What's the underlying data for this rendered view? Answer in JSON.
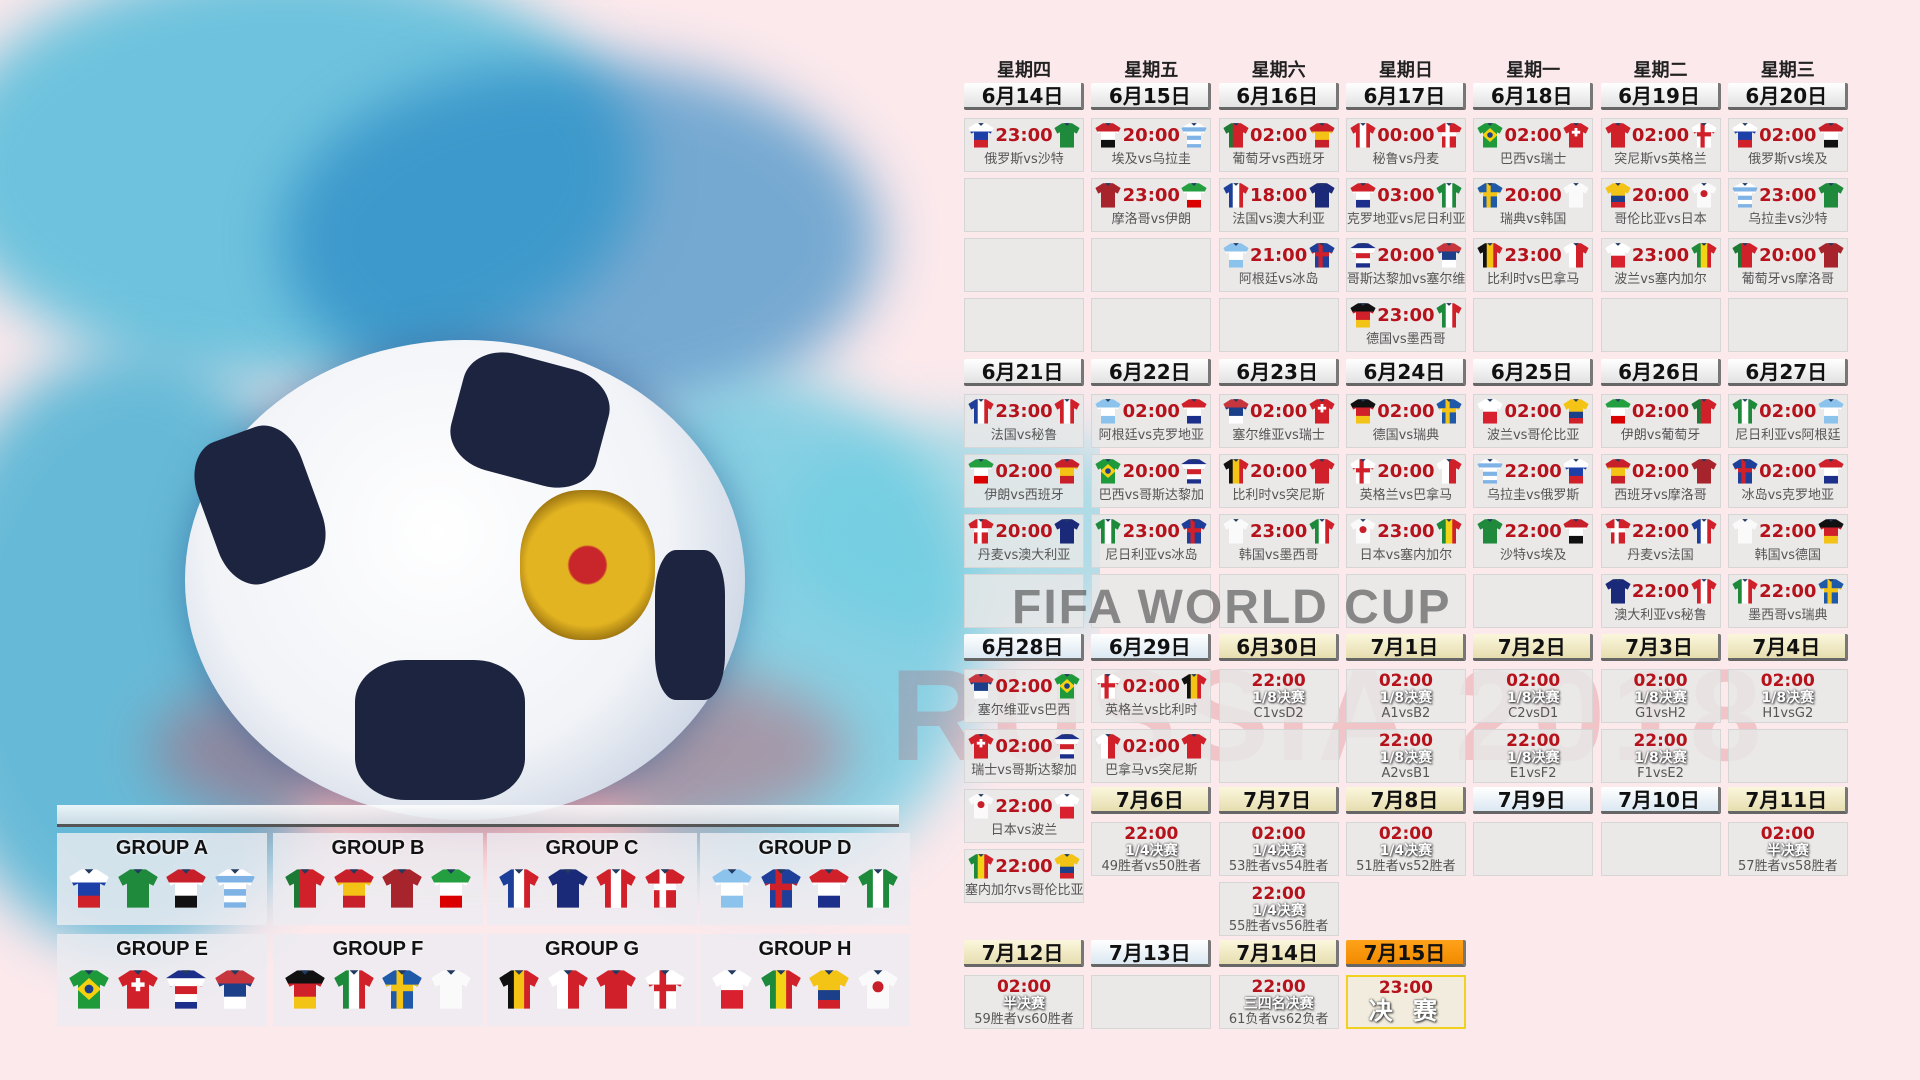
{
  "weekdays": [
    "星期四",
    "星期五",
    "星期六",
    "星期日",
    "星期一",
    "星期二",
    "星期三"
  ],
  "watermark": {
    "line1": "FIFA WORLD CUP",
    "line2": "RUSSIA 2018"
  },
  "days": [
    {
      "date": "6月14日",
      "style": "group",
      "matches": [
        {
          "time": "23:00",
          "home": "russia",
          "away": "saudi",
          "teams": "俄罗斯vs沙特"
        }
      ]
    },
    {
      "date": "6月15日",
      "style": "group",
      "matches": [
        {
          "time": "20:00",
          "home": "egypt",
          "away": "uruguay",
          "teams": "埃及vs乌拉圭"
        },
        {
          "time": "23:00",
          "home": "morocco",
          "away": "iran",
          "teams": "摩洛哥vs伊朗"
        }
      ]
    },
    {
      "date": "6月16日",
      "style": "group",
      "matches": [
        {
          "time": "02:00",
          "home": "portugal",
          "away": "spain",
          "teams": "葡萄牙vs西班牙"
        },
        {
          "time": "18:00",
          "home": "france",
          "away": "australia",
          "teams": "法国vs澳大利亚"
        },
        {
          "time": "21:00",
          "home": "argentina",
          "away": "iceland",
          "teams": "阿根廷vs冰岛"
        }
      ]
    },
    {
      "date": "6月17日",
      "style": "group",
      "matches": [
        {
          "time": "00:00",
          "home": "peru",
          "away": "denmark",
          "teams": "秘鲁vs丹麦"
        },
        {
          "time": "03:00",
          "home": "croatia",
          "away": "nigeria",
          "teams": "克罗地亚vs尼日利亚"
        },
        {
          "time": "20:00",
          "home": "costarica",
          "away": "serbia",
          "teams": "哥斯达黎加vs塞尔维亚"
        },
        {
          "time": "23:00",
          "home": "germany",
          "away": "mexico",
          "teams": "德国vs墨西哥"
        }
      ]
    },
    {
      "date": "6月18日",
      "style": "group",
      "matches": [
        {
          "time": "02:00",
          "home": "brazil",
          "away": "switzerland",
          "teams": "巴西vs瑞士"
        },
        {
          "time": "20:00",
          "home": "sweden",
          "away": "korea",
          "teams": "瑞典vs韩国"
        },
        {
          "time": "23:00",
          "home": "belgium",
          "away": "panama",
          "teams": "比利时vs巴拿马"
        }
      ]
    },
    {
      "date": "6月19日",
      "style": "group",
      "matches": [
        {
          "time": "02:00",
          "home": "tunisia",
          "away": "england",
          "teams": "突尼斯vs英格兰"
        },
        {
          "time": "20:00",
          "home": "colombia",
          "away": "japan",
          "teams": "哥伦比亚vs日本"
        },
        {
          "time": "23:00",
          "home": "poland",
          "away": "senegal",
          "teams": "波兰vs塞内加尔"
        }
      ]
    },
    {
      "date": "6月20日",
      "style": "group",
      "matches": [
        {
          "time": "02:00",
          "home": "russia",
          "away": "egypt",
          "teams": "俄罗斯vs埃及"
        },
        {
          "time": "23:00",
          "home": "uruguay",
          "away": "saudi",
          "teams": "乌拉圭vs沙特"
        },
        {
          "time": "20:00",
          "home": "portugal",
          "away": "morocco",
          "teams": "葡萄牙vs摩洛哥"
        }
      ]
    },
    {
      "date": "6月21日",
      "style": "group",
      "matches": [
        {
          "time": "23:00",
          "home": "france",
          "away": "peru",
          "teams": "法国vs秘鲁"
        },
        {
          "time": "02:00",
          "home": "iran",
          "away": "spain",
          "teams": "伊朗vs西班牙"
        },
        {
          "time": "20:00",
          "home": "denmark",
          "away": "australia",
          "teams": "丹麦vs澳大利亚"
        }
      ]
    },
    {
      "date": "6月22日",
      "style": "group",
      "matches": [
        {
          "time": "02:00",
          "home": "argentina",
          "away": "croatia",
          "teams": "阿根廷vs克罗地亚"
        },
        {
          "time": "20:00",
          "home": "brazil",
          "away": "costarica",
          "teams": "巴西vs哥斯达黎加"
        },
        {
          "time": "23:00",
          "home": "nigeria",
          "away": "iceland",
          "teams": "尼日利亚vs冰岛"
        }
      ]
    },
    {
      "date": "6月23日",
      "style": "group",
      "matches": [
        {
          "time": "02:00",
          "home": "serbia",
          "away": "switzerland",
          "teams": "塞尔维亚vs瑞士"
        },
        {
          "time": "20:00",
          "home": "belgium",
          "away": "tunisia",
          "teams": "比利时vs突尼斯"
        },
        {
          "time": "23:00",
          "home": "korea",
          "away": "mexico",
          "teams": "韩国vs墨西哥"
        }
      ]
    },
    {
      "date": "6月24日",
      "style": "group",
      "matches": [
        {
          "time": "02:00",
          "home": "germany",
          "away": "sweden",
          "teams": "德国vs瑞典"
        },
        {
          "time": "20:00",
          "home": "england",
          "away": "panama",
          "teams": "英格兰vs巴拿马"
        },
        {
          "time": "23:00",
          "home": "japan",
          "away": "senegal",
          "teams": "日本vs塞内加尔"
        }
      ]
    },
    {
      "date": "6月25日",
      "style": "group",
      "matches": [
        {
          "time": "02:00",
          "home": "poland",
          "away": "colombia",
          "teams": "波兰vs哥伦比亚"
        },
        {
          "time": "22:00",
          "home": "uruguay",
          "away": "russia",
          "teams": "乌拉圭vs俄罗斯"
        },
        {
          "time": "22:00",
          "home": "saudi",
          "away": "egypt",
          "teams": "沙特vs埃及"
        }
      ]
    },
    {
      "date": "6月26日",
      "style": "group",
      "matches": [
        {
          "time": "02:00",
          "home": "iran",
          "away": "portugal",
          "teams": "伊朗vs葡萄牙"
        },
        {
          "time": "02:00",
          "home": "spain",
          "away": "morocco",
          "teams": "西班牙vs摩洛哥"
        },
        {
          "time": "22:00",
          "home": "denmark",
          "away": "france",
          "teams": "丹麦vs法国"
        },
        {
          "time": "22:00",
          "home": "australia",
          "away": "peru",
          "teams": "澳大利亚vs秘鲁"
        }
      ]
    },
    {
      "date": "6月27日",
      "style": "group",
      "matches": [
        {
          "time": "02:00",
          "home": "nigeria",
          "away": "argentina",
          "teams": "尼日利亚vs阿根廷"
        },
        {
          "time": "02:00",
          "home": "iceland",
          "away": "croatia",
          "teams": "冰岛vs克罗地亚"
        },
        {
          "time": "22:00",
          "home": "korea",
          "away": "germany",
          "teams": "韩国vs德国"
        },
        {
          "time": "22:00",
          "home": "mexico",
          "away": "sweden",
          "teams": "墨西哥vs瑞典"
        }
      ]
    },
    {
      "date": "6月28日",
      "style": "light",
      "matches": [
        {
          "time": "02:00",
          "home": "serbia",
          "away": "brazil",
          "teams": "塞尔维亚vs巴西"
        },
        {
          "time": "02:00",
          "home": "switzerland",
          "away": "costarica",
          "teams": "瑞士vs哥斯达黎加"
        },
        {
          "time": "22:00",
          "home": "japan",
          "away": "poland",
          "teams": "日本vs波兰"
        },
        {
          "time": "22:00",
          "home": "senegal",
          "away": "colombia",
          "teams": "塞内加尔vs哥伦比亚"
        }
      ]
    },
    {
      "date": "6月29日",
      "style": "light",
      "matches": [
        {
          "time": "02:00",
          "home": "england",
          "away": "belgium",
          "teams": "英格兰vs比利时"
        },
        {
          "time": "02:00",
          "home": "panama",
          "away": "tunisia",
          "teams": "巴拿马vs突尼斯"
        }
      ]
    },
    {
      "date": "6月30日",
      "style": "knockout",
      "matches": [
        {
          "time": "22:00",
          "stage": "1/8决赛",
          "pairing": "C1vsD2"
        }
      ]
    },
    {
      "date": "7月1日",
      "style": "knockout",
      "matches": [
        {
          "time": "02:00",
          "stage": "1/8决赛",
          "pairing": "A1vsB2"
        },
        {
          "time": "22:00",
          "stage": "1/8决赛",
          "pairing": "A2vsB1"
        }
      ]
    },
    {
      "date": "7月2日",
      "style": "knockout",
      "matches": [
        {
          "time": "02:00",
          "stage": "1/8决赛",
          "pairing": "C2vsD1"
        },
        {
          "time": "22:00",
          "stage": "1/8决赛",
          "pairing": "E1vsF2"
        }
      ]
    },
    {
      "date": "7月3日",
      "style": "knockout",
      "matches": [
        {
          "time": "02:00",
          "stage": "1/8决赛",
          "pairing": "G1vsH2"
        },
        {
          "time": "22:00",
          "stage": "1/8决赛",
          "pairing": "F1vsE2"
        }
      ]
    },
    {
      "date": "7月4日",
      "style": "knockout",
      "matches": [
        {
          "time": "02:00",
          "stage": "1/8决赛",
          "pairing": "H1vsG2"
        }
      ]
    },
    {
      "date": "7月6日",
      "style": "knockout",
      "matches": [
        {
          "time": "22:00",
          "stage": "1/4决赛",
          "pairing": "49胜者vs50胜者"
        }
      ]
    },
    {
      "date": "7月7日",
      "style": "knockout",
      "matches": [
        {
          "time": "02:00",
          "stage": "1/4决赛",
          "pairing": "53胜者vs54胜者"
        },
        {
          "time": "22:00",
          "stage": "1/4决赛",
          "pairing": "55胜者vs56胜者"
        }
      ]
    },
    {
      "date": "7月8日",
      "style": "knockout",
      "matches": [
        {
          "time": "02:00",
          "stage": "1/4决赛",
          "pairing": "51胜者vs52胜者"
        }
      ]
    },
    {
      "date": "7月9日",
      "style": "light",
      "matches": []
    },
    {
      "date": "7月10日",
      "style": "light",
      "matches": []
    },
    {
      "date": "7月11日",
      "style": "knockout",
      "matches": [
        {
          "time": "02:00",
          "stage": "半决赛",
          "pairing": "57胜者vs58胜者"
        }
      ]
    },
    {
      "date": "7月12日",
      "style": "knockout",
      "matches": [
        {
          "time": "02:00",
          "stage": "半决赛",
          "pairing": "59胜者vs60胜者"
        }
      ]
    },
    {
      "date": "7月13日",
      "style": "light",
      "matches": []
    },
    {
      "date": "7月14日",
      "style": "knockout",
      "matches": [
        {
          "time": "22:00",
          "stage": "三四名决赛",
          "pairing": "61负者vs62负者"
        }
      ]
    },
    {
      "date": "7月15日",
      "style": "final",
      "matches": [
        {
          "time": "23:00",
          "stage": "决 赛",
          "final": true
        }
      ]
    }
  ],
  "groups": [
    {
      "name": "GROUP A",
      "teams": [
        "russia",
        "saudi",
        "egypt",
        "uruguay"
      ]
    },
    {
      "name": "GROUP B",
      "teams": [
        "portugal",
        "spain",
        "morocco",
        "iran"
      ]
    },
    {
      "name": "GROUP C",
      "teams": [
        "france",
        "australia",
        "peru",
        "denmark"
      ]
    },
    {
      "name": "GROUP D",
      "teams": [
        "argentina",
        "iceland",
        "croatia",
        "nigeria"
      ]
    },
    {
      "name": "GROUP E",
      "teams": [
        "brazil",
        "switzerland",
        "costarica",
        "serbia"
      ]
    },
    {
      "name": "GROUP F",
      "teams": [
        "germany",
        "mexico",
        "sweden",
        "korea"
      ]
    },
    {
      "name": "GROUP G",
      "teams": [
        "belgium",
        "panama",
        "tunisia",
        "england"
      ]
    },
    {
      "name": "GROUP H",
      "teams": [
        "poland",
        "senegal",
        "colombia",
        "japan"
      ]
    }
  ],
  "colors": {
    "time": "#b5121b",
    "final_header": "#f08a00",
    "final_border": "#f0d21e"
  }
}
